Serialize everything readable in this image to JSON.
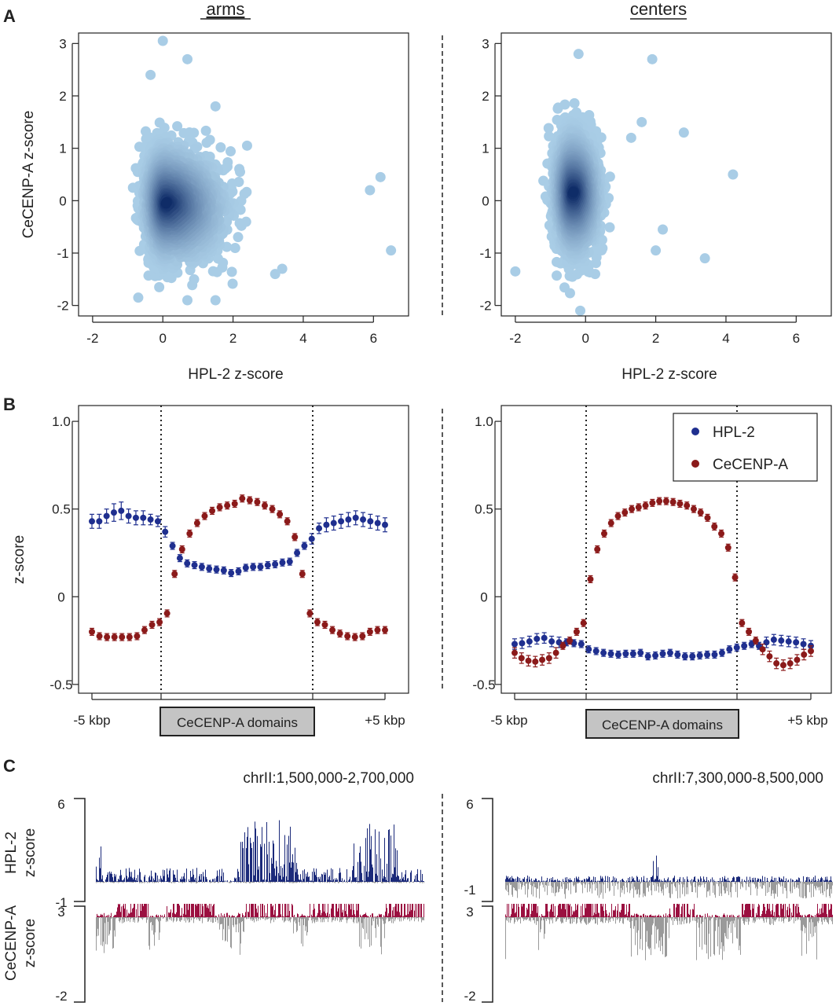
{
  "colors": {
    "hpl2": "#1f2f8f",
    "cenpa": "#8b1a1a",
    "track_hpl2": "#1b2a7a",
    "track_cenpa": "#9b1040",
    "track_neg": "#9a9a9a",
    "scatter_light": "#a9cde6",
    "scatter_dark": "#0d2a66",
    "domain_box": "#c4c4c4"
  },
  "panels": {
    "A": "A",
    "B": "B",
    "C": "C"
  },
  "chart_data": [
    {
      "id": "A-arms",
      "type": "scatter",
      "title": "arms",
      "xlabel": "HPL-2 z-score",
      "ylabel": "CeCENP-A z-score",
      "xlim": [
        -2.4,
        7.0
      ],
      "ylim": [
        -2.2,
        3.2
      ],
      "xticks": [
        -2,
        0,
        2,
        4,
        6
      ],
      "yticks": [
        -2,
        -1,
        0,
        1,
        2,
        3
      ],
      "xtick_labels": [
        "-2",
        "0",
        "2",
        "4",
        "6"
      ],
      "ytick_labels": [
        "-2",
        "-1",
        "0",
        "1",
        "2",
        "3"
      ],
      "density_center": [
        0.1,
        -0.05
      ],
      "outliers": [
        [
          0.0,
          3.05
        ],
        [
          0.7,
          2.7
        ],
        [
          -0.35,
          2.4
        ],
        [
          1.5,
          1.8
        ],
        [
          6.5,
          -0.95
        ],
        [
          6.2,
          0.45
        ],
        [
          5.9,
          0.2
        ],
        [
          0.7,
          -1.9
        ],
        [
          1.5,
          -1.9
        ],
        [
          -0.7,
          -1.85
        ],
        [
          3.2,
          -1.4
        ],
        [
          3.4,
          -1.3
        ],
        [
          2.4,
          1.05
        ],
        [
          2.2,
          0.55
        ]
      ]
    },
    {
      "id": "A-centers",
      "type": "scatter",
      "title": "centers",
      "xlabel": "HPL-2 z-score",
      "ylabel": "",
      "xlim": [
        -2.4,
        7.0
      ],
      "ylim": [
        -2.2,
        3.2
      ],
      "xticks": [
        -2,
        0,
        2,
        4,
        6
      ],
      "yticks": [
        -2,
        -1,
        0,
        1,
        2,
        3
      ],
      "xtick_labels": [
        "-2",
        "0",
        "2",
        "4",
        "6"
      ],
      "ytick_labels": [
        "-2",
        "-1",
        "0",
        "1",
        "2",
        "3"
      ],
      "density_center": [
        -0.35,
        0.15
      ],
      "outliers": [
        [
          4.2,
          0.5
        ],
        [
          1.9,
          2.7
        ],
        [
          -0.2,
          2.8
        ],
        [
          2.8,
          1.3
        ],
        [
          3.4,
          -1.1
        ],
        [
          2.0,
          -0.95
        ],
        [
          2.2,
          -0.55
        ],
        [
          -2.0,
          -1.35
        ],
        [
          -0.15,
          -2.1
        ],
        [
          1.6,
          1.5
        ],
        [
          1.3,
          1.2
        ]
      ]
    },
    {
      "id": "B-arms",
      "type": "line",
      "xlabel_left": "-5 kbp",
      "xlabel_right": "+5 kbp",
      "domain_label": "CeCENP-A domains",
      "ylabel": "z-score",
      "ylim": [
        -0.5,
        1.0
      ],
      "yticks": [
        -0.5,
        0,
        0.5,
        1.0
      ],
      "ytick_labels": [
        "-0.5",
        "0",
        "0.5",
        "1.0"
      ],
      "series": [
        {
          "name": "HPL-2",
          "values": [
            0.43,
            0.43,
            0.46,
            0.48,
            0.49,
            0.46,
            0.45,
            0.45,
            0.44,
            0.43,
            0.37,
            0.29,
            0.22,
            0.19,
            0.18,
            0.17,
            0.16,
            0.155,
            0.15,
            0.135,
            0.145,
            0.165,
            0.17,
            0.17,
            0.18,
            0.185,
            0.195,
            0.2,
            0.25,
            0.29,
            0.33,
            0.39,
            0.41,
            0.42,
            0.43,
            0.44,
            0.45,
            0.44,
            0.43,
            0.42,
            0.41
          ],
          "errors": [
            0.04,
            0.04,
            0.04,
            0.05,
            0.05,
            0.04,
            0.04,
            0.04,
            0.03,
            0.03,
            0.03,
            0.02,
            0.02,
            0.02,
            0.02,
            0.02,
            0.02,
            0.02,
            0.02,
            0.02,
            0.02,
            0.02,
            0.02,
            0.02,
            0.02,
            0.02,
            0.02,
            0.02,
            0.02,
            0.02,
            0.03,
            0.03,
            0.04,
            0.04,
            0.04,
            0.04,
            0.04,
            0.04,
            0.04,
            0.04,
            0.04
          ]
        },
        {
          "name": "CeCENP-A",
          "values": [
            -0.2,
            -0.225,
            -0.23,
            -0.23,
            -0.23,
            -0.23,
            -0.225,
            -0.19,
            -0.16,
            -0.145,
            -0.095,
            0.13,
            0.27,
            0.36,
            0.42,
            0.46,
            0.49,
            0.51,
            0.52,
            0.53,
            0.56,
            0.55,
            0.54,
            0.52,
            0.5,
            0.47,
            0.43,
            0.34,
            0.13,
            -0.095,
            -0.145,
            -0.16,
            -0.19,
            -0.21,
            -0.225,
            -0.23,
            -0.225,
            -0.2,
            -0.19,
            -0.19
          ],
          "errors": [
            0.02,
            0.02,
            0.02,
            0.02,
            0.02,
            0.02,
            0.02,
            0.02,
            0.02,
            0.02,
            0.02,
            0.02,
            0.02,
            0.02,
            0.02,
            0.02,
            0.02,
            0.02,
            0.02,
            0.02,
            0.02,
            0.02,
            0.02,
            0.02,
            0.02,
            0.02,
            0.02,
            0.02,
            0.02,
            0.02,
            0.02,
            0.02,
            0.02,
            0.02,
            0.02,
            0.02,
            0.02,
            0.02,
            0.02,
            0.02
          ]
        }
      ]
    },
    {
      "id": "B-centers",
      "type": "line",
      "xlabel_left": "-5 kbp",
      "xlabel_right": "+5 kbp",
      "domain_label": "CeCENP-A domains",
      "ylabel": "",
      "ylim": [
        -0.5,
        1.0
      ],
      "yticks": [
        -0.5,
        0,
        0.5,
        1.0
      ],
      "ytick_labels": [
        "-0.5",
        "0",
        "0.5",
        "1.0"
      ],
      "legend": [
        "HPL-2",
        "CeCENP-A"
      ],
      "legend_position": "top-right",
      "series": [
        {
          "name": "HPL-2",
          "values": [
            -0.27,
            -0.265,
            -0.255,
            -0.24,
            -0.235,
            -0.255,
            -0.26,
            -0.26,
            -0.265,
            -0.27,
            -0.3,
            -0.31,
            -0.32,
            -0.325,
            -0.33,
            -0.325,
            -0.325,
            -0.32,
            -0.34,
            -0.335,
            -0.325,
            -0.32,
            -0.33,
            -0.34,
            -0.34,
            -0.335,
            -0.33,
            -0.33,
            -0.32,
            -0.3,
            -0.29,
            -0.28,
            -0.27,
            -0.28,
            -0.26,
            -0.245,
            -0.25,
            -0.255,
            -0.26,
            -0.27,
            -0.28
          ],
          "errors": [
            0.03,
            0.03,
            0.03,
            0.03,
            0.03,
            0.03,
            0.03,
            0.02,
            0.02,
            0.02,
            0.02,
            0.02,
            0.02,
            0.02,
            0.02,
            0.02,
            0.02,
            0.02,
            0.02,
            0.02,
            0.02,
            0.02,
            0.02,
            0.02,
            0.02,
            0.02,
            0.02,
            0.02,
            0.02,
            0.02,
            0.02,
            0.02,
            0.02,
            0.02,
            0.03,
            0.03,
            0.03,
            0.03,
            0.03,
            0.03,
            0.03
          ]
        },
        {
          "name": "CeCENP-A",
          "values": [
            -0.32,
            -0.35,
            -0.365,
            -0.37,
            -0.36,
            -0.35,
            -0.32,
            -0.28,
            -0.25,
            -0.2,
            -0.15,
            0.1,
            0.27,
            0.36,
            0.42,
            0.46,
            0.48,
            0.5,
            0.51,
            0.52,
            0.535,
            0.545,
            0.545,
            0.54,
            0.53,
            0.52,
            0.5,
            0.48,
            0.45,
            0.4,
            0.36,
            0.28,
            0.11,
            -0.15,
            -0.2,
            -0.25,
            -0.3,
            -0.34,
            -0.38,
            -0.39,
            -0.38,
            -0.36,
            -0.33,
            -0.31
          ],
          "errors": [
            0.03,
            0.03,
            0.03,
            0.03,
            0.03,
            0.03,
            0.03,
            0.02,
            0.02,
            0.02,
            0.02,
            0.02,
            0.02,
            0.02,
            0.02,
            0.02,
            0.02,
            0.02,
            0.02,
            0.02,
            0.02,
            0.02,
            0.02,
            0.02,
            0.02,
            0.02,
            0.02,
            0.02,
            0.02,
            0.02,
            0.02,
            0.02,
            0.02,
            0.02,
            0.02,
            0.02,
            0.03,
            0.03,
            0.03,
            0.03,
            0.03,
            0.03,
            0.03,
            0.03
          ]
        }
      ]
    },
    {
      "id": "C-arms",
      "type": "area",
      "title": "chrII:1,500,000-2,700,000",
      "tracks": [
        {
          "name": "HPL-2",
          "ylabel_line1": "HPL-2",
          "ylabel_line2": "z-score",
          "ymax_label": "6",
          "ymin_label": "-1",
          "ylim": [
            -1,
            6
          ]
        },
        {
          "name": "CeCENP-A",
          "ylabel_line1": "CeCENP-A",
          "ylabel_line2": "z-score",
          "ymax_label": "3",
          "ymin_label": "-2",
          "ylim": [
            -2,
            3
          ]
        }
      ]
    },
    {
      "id": "C-centers",
      "type": "area",
      "title": "chrII:7,300,000-8,500,000",
      "tracks": [
        {
          "name": "HPL-2",
          "ymax_label": "6",
          "ymin_label": "-1",
          "ylim": [
            -1,
            6
          ]
        },
        {
          "name": "CeCENP-A",
          "ymax_label": "3",
          "ymin_label": "-2",
          "ylim": [
            -2,
            3
          ]
        }
      ]
    }
  ]
}
